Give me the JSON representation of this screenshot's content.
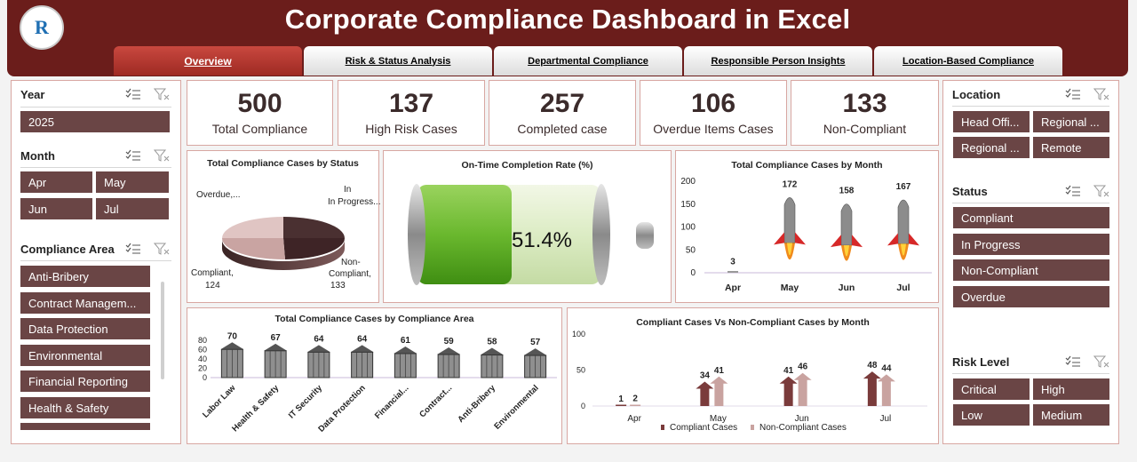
{
  "header": {
    "title": "Corporate Compliance Dashboard in Excel",
    "logo_text": "R"
  },
  "tabs": [
    {
      "label": "Overview",
      "active": true
    },
    {
      "label": "Risk & Status Analysis"
    },
    {
      "label": "Departmental Compliance"
    },
    {
      "label": "Responsible Person Insights"
    },
    {
      "label": "Location-Based Compliance"
    }
  ],
  "left_slicers": {
    "year": {
      "title": "Year",
      "items": [
        "2025"
      ]
    },
    "month": {
      "title": "Month",
      "items": [
        "Apr",
        "May",
        "Jun",
        "Jul"
      ]
    },
    "area": {
      "title": "Compliance Area",
      "items": [
        "Anti-Bribery",
        "Contract Managem...",
        "Data Protection",
        "Environmental",
        "Financial Reporting",
        "Health & Safety"
      ]
    }
  },
  "right_slicers": {
    "location": {
      "title": "Location",
      "items": [
        "Head Offi...",
        "Regional ...",
        "Regional ...",
        "Remote"
      ]
    },
    "status": {
      "title": "Status",
      "items": [
        "Compliant",
        "In Progress",
        "Non-Compliant",
        "Overdue"
      ]
    },
    "risk": {
      "title": "Risk Level",
      "items": [
        "Critical",
        "High",
        "Low",
        "Medium"
      ]
    }
  },
  "kpis": [
    {
      "value": "500",
      "label": "Total Compliance"
    },
    {
      "value": "137",
      "label": "High Risk Cases"
    },
    {
      "value": "257",
      "label": "Completed case"
    },
    {
      "value": "106",
      "label": "Overdue Items Cases"
    },
    {
      "value": "133",
      "label": "Non-Compliant"
    }
  ],
  "colors": {
    "brand": "#6b1d1b",
    "chip": "#6a4545",
    "accent": "#b8342c",
    "battery": "#7ac142"
  },
  "chart_data": [
    {
      "type": "pie",
      "title": "Total Compliance Cases by Status",
      "labels": [
        "In Progress...",
        "Non-Compliant,",
        "Compliant,",
        "Overdue,..."
      ],
      "values": [
        null,
        133,
        124,
        null
      ],
      "value_labels": [
        "",
        "133",
        "124",
        ""
      ]
    },
    {
      "type": "gauge",
      "title": "On-Time Completion Rate (%)",
      "value": 51.4,
      "value_label": "51.4%"
    },
    {
      "type": "bar",
      "title": "Total Compliance Cases by Month",
      "categories": [
        "Apr",
        "May",
        "Jun",
        "Jul"
      ],
      "values": [
        3,
        172,
        158,
        167
      ],
      "yticks": [
        "0",
        "50",
        "100",
        "150",
        "200"
      ],
      "ylim": [
        0,
        200
      ]
    },
    {
      "type": "bar",
      "title": "Total Compliance Cases by Compliance Area",
      "categories": [
        "Labor Law",
        "Health & Safety",
        "IT Security",
        "Data Protection",
        "Financial...",
        "Contract...",
        "Anti-Bribery",
        "Environmental"
      ],
      "values": [
        70,
        67,
        64,
        64,
        61,
        59,
        58,
        57
      ],
      "yticks": [
        "0",
        "20",
        "40",
        "60",
        "80"
      ],
      "ylim": [
        0,
        80
      ]
    },
    {
      "type": "bar",
      "title": "Compliant Cases Vs Non-Compliant Cases by Month",
      "categories": [
        "Apr",
        "May",
        "Jun",
        "Jul"
      ],
      "series": [
        {
          "name": "Compliant Cases",
          "values": [
            1,
            34,
            41,
            48
          ]
        },
        {
          "name": "Non-Compliant Cases",
          "values": [
            2,
            41,
            46,
            44
          ]
        }
      ],
      "yticks": [
        "0",
        "50",
        "100"
      ],
      "ylim": [
        0,
        100
      ]
    }
  ]
}
